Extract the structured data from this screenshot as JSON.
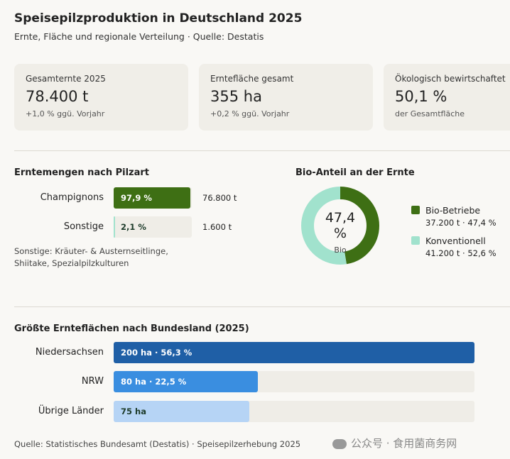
{
  "header": {
    "title": "Speisepilzproduktion in Deutschland 2025",
    "subtitle": "Ernte, Fläche und regionale Verteilung · Quelle: Destatis"
  },
  "kpis": [
    {
      "label": "Gesamternte 2025",
      "value": "78.400 t",
      "note": "+1,0 % ggü. Vorjahr"
    },
    {
      "label": "Erntefläche gesamt",
      "value": "355 ha",
      "note": "+0,2 % ggü. Vorjahr"
    },
    {
      "label": "Ökologisch bewirtschaftet",
      "value": "50,1 %",
      "note": "der Gesamtfläche"
    }
  ],
  "chart_data": [
    {
      "type": "bar",
      "title": "Erntemengen nach Pilzart",
      "categories": [
        "Champignons",
        "Sonstige"
      ],
      "values": [
        97.9,
        2.1
      ],
      "value_labels": [
        "97,9 %",
        "2,1 %"
      ],
      "annotations": [
        "76.800 t",
        "1.600 t"
      ],
      "colors": [
        "#3e6f14",
        "#a1e2cd"
      ],
      "xlim": [
        0,
        100
      ],
      "note": "Sonstige: Kräuter- & Austernseitlinge, Shiitake, Spezialpilzkulturen"
    },
    {
      "type": "donut",
      "title": "Bio-Anteil an der Ernte",
      "categories": [
        "Bio-Betriebe",
        "Konventionell"
      ],
      "values": [
        47.4,
        52.6
      ],
      "value_labels": [
        "37.200 t · 47,4 %",
        "41.200 t · 52,6 %"
      ],
      "colors": [
        "#3e6f14",
        "#a1e2cd"
      ],
      "center_label": "47,4 %",
      "center_sub": "Bio"
    },
    {
      "type": "bar",
      "title": "Größte Ernteflächen nach Bundesland (2025)",
      "categories": [
        "Niedersachsen",
        "NRW",
        "Übrige Länder"
      ],
      "values": [
        200,
        80,
        75
      ],
      "value_labels": [
        "200 ha · 56,3 %",
        "80 ha · 22,5 %",
        "75 ha"
      ],
      "colors": [
        "#1f5fa6",
        "#3a8ee0",
        "#b6d4f5"
      ],
      "xlim": [
        0,
        200
      ]
    }
  ],
  "footer": {
    "source": "Quelle: Statistisches Bundesamt (Destatis) · Speisepilzerhebung 2025",
    "watermark": "公众号 · 食用菌商务网"
  }
}
